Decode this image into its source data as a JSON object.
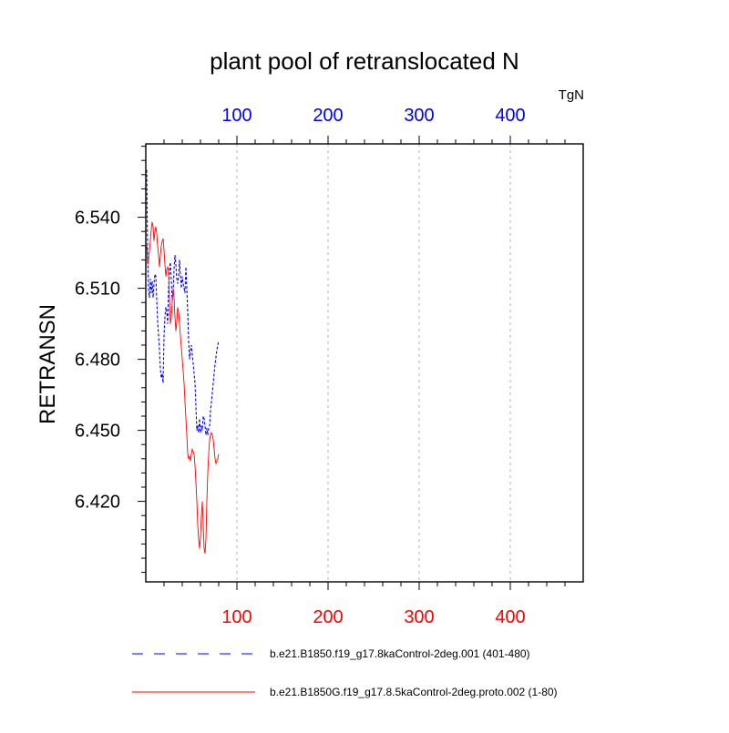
{
  "chart_data": {
    "type": "line",
    "title": "plant pool of retranslocated N",
    "units": "TgN",
    "ylabel": "RETRANSN",
    "xlim": [
      0,
      480
    ],
    "ylim": [
      6.386,
      6.571
    ],
    "yticks": [
      6.42,
      6.45,
      6.48,
      6.51,
      6.54
    ],
    "ytick_labels": [
      "6.420",
      "6.450",
      "6.480",
      "6.510",
      "6.540"
    ],
    "xticks": [
      100,
      200,
      300,
      400
    ],
    "xtick_labels_top": [
      "100",
      "200",
      "300",
      "400"
    ],
    "xtick_labels_bottom": [
      "100",
      "200",
      "300",
      "400"
    ],
    "grid": "vertical-dashed",
    "top_axis_color": "#0000ff",
    "bottom_axis_color": "#ff0000",
    "series": [
      {
        "name": "b.e21.B1850.f19_g17.8kaControl-2deg.001 (401-480)",
        "color": "#0000ff",
        "dash": "dashed",
        "x": [
          1,
          2,
          3,
          4,
          5,
          6,
          7,
          8,
          9,
          10,
          11,
          12,
          13,
          14,
          15,
          16,
          17,
          18,
          19,
          20,
          21,
          22,
          23,
          24,
          25,
          26,
          27,
          28,
          29,
          30,
          31,
          32,
          33,
          34,
          35,
          36,
          37,
          38,
          39,
          40,
          41,
          42,
          43,
          44,
          45,
          46,
          47,
          48,
          49,
          50,
          51,
          52,
          53,
          54,
          55,
          56,
          57,
          58,
          59,
          60,
          61,
          62,
          63,
          64,
          65,
          66,
          67,
          68,
          69,
          70,
          71,
          72,
          73,
          74,
          75,
          76,
          77,
          78,
          79,
          80
        ],
        "y": [
          6.56,
          6.524,
          6.509,
          6.506,
          6.514,
          6.508,
          6.513,
          6.506,
          6.512,
          6.516,
          6.515,
          6.505,
          6.496,
          6.49,
          6.484,
          6.476,
          6.472,
          6.474,
          6.47,
          6.49,
          6.498,
          6.502,
          6.5,
          6.495,
          6.51,
          6.518,
          6.521,
          6.513,
          6.505,
          6.508,
          6.518,
          6.524,
          6.52,
          6.514,
          6.512,
          6.515,
          6.522,
          6.516,
          6.51,
          6.515,
          6.512,
          6.51,
          6.508,
          6.519,
          6.51,
          6.5,
          6.488,
          6.48,
          6.484,
          6.486,
          6.482,
          6.478,
          6.474,
          6.47,
          6.46,
          6.45,
          6.452,
          6.449,
          6.455,
          6.449,
          6.452,
          6.45,
          6.456,
          6.455,
          6.452,
          6.448,
          6.451,
          6.448,
          6.451,
          6.452,
          6.458,
          6.462,
          6.466,
          6.47,
          6.474,
          6.478,
          6.481,
          6.484,
          6.486,
          6.488
        ]
      },
      {
        "name": "b.e21.B1850G.f19_g17.8.5kaControl-2deg.proto.002 (1-80)",
        "color": "#ff0000",
        "dash": "solid",
        "x": [
          1,
          2,
          3,
          4,
          5,
          6,
          7,
          8,
          9,
          10,
          11,
          12,
          13,
          14,
          15,
          16,
          17,
          18,
          19,
          20,
          21,
          22,
          23,
          24,
          25,
          26,
          27,
          28,
          29,
          30,
          31,
          32,
          33,
          34,
          35,
          36,
          37,
          38,
          39,
          40,
          41,
          42,
          43,
          44,
          45,
          46,
          47,
          48,
          49,
          50,
          51,
          52,
          53,
          54,
          55,
          56,
          57,
          58,
          59,
          60,
          61,
          62,
          63,
          64,
          65,
          66,
          67,
          68,
          69,
          70,
          71,
          72,
          73,
          74,
          75,
          76,
          77,
          78,
          79,
          80
        ],
        "y": [
          6.528,
          6.52,
          6.522,
          6.526,
          6.53,
          6.535,
          6.538,
          6.536,
          6.53,
          6.534,
          6.536,
          6.533,
          6.528,
          6.524,
          6.519,
          6.524,
          6.528,
          6.53,
          6.531,
          6.526,
          6.52,
          6.515,
          6.518,
          6.519,
          6.517,
          6.505,
          6.495,
          6.498,
          6.504,
          6.51,
          6.506,
          6.498,
          6.492,
          6.496,
          6.502,
          6.5,
          6.495,
          6.49,
          6.485,
          6.48,
          6.475,
          6.47,
          6.462,
          6.455,
          6.448,
          6.44,
          6.438,
          6.439,
          6.437,
          6.44,
          6.442,
          6.441,
          6.44,
          6.435,
          6.428,
          6.42,
          6.41,
          6.404,
          6.4,
          6.405,
          6.414,
          6.42,
          6.41,
          6.4,
          6.398,
          6.404,
          6.42,
          6.432,
          6.44,
          6.446,
          6.448,
          6.449,
          6.448,
          6.446,
          6.442,
          6.438,
          6.436,
          6.437,
          6.438,
          6.44
        ]
      }
    ]
  }
}
